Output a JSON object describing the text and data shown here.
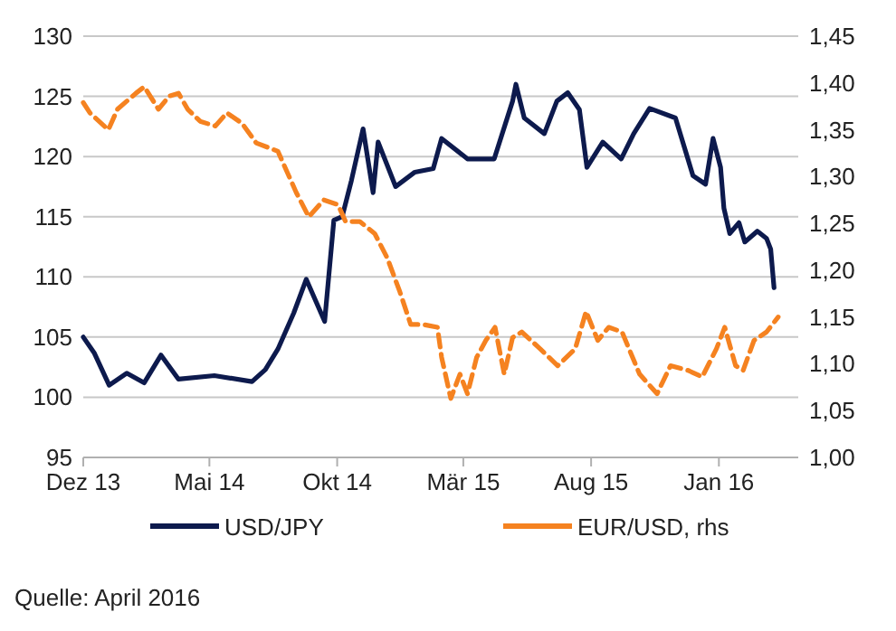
{
  "chart_data": {
    "type": "line",
    "grid": "y",
    "legend": "bottom",
    "xlim": [
      "2013-12-01",
      "2016-04-05"
    ],
    "xticks": [
      {
        "value": "2013-12-01",
        "label": "Dez 13"
      },
      {
        "value": "2014-05-01",
        "label": "Mai 14"
      },
      {
        "value": "2014-10-01",
        "label": "Okt 14"
      },
      {
        "value": "2015-03-01",
        "label": "Mär 15"
      },
      {
        "value": "2015-08-01",
        "label": "Aug 15"
      },
      {
        "value": "2016-01-01",
        "label": "Jan 16"
      }
    ],
    "ylim": [
      95,
      130
    ],
    "yticks": [
      95,
      100,
      105,
      110,
      115,
      120,
      125,
      130
    ],
    "y2lim": [
      1.0,
      1.45
    ],
    "y2ticks": [
      {
        "value": 1.0,
        "label": "1,00"
      },
      {
        "value": 1.05,
        "label": "1,05"
      },
      {
        "value": 1.1,
        "label": "1,10"
      },
      {
        "value": 1.15,
        "label": "1,15"
      },
      {
        "value": 1.2,
        "label": "1,20"
      },
      {
        "value": 1.25,
        "label": "1,25"
      },
      {
        "value": 1.3,
        "label": "1,30"
      },
      {
        "value": 1.35,
        "label": "1,35"
      },
      {
        "value": 1.4,
        "label": "1,40"
      },
      {
        "value": 1.45,
        "label": "1,45"
      }
    ],
    "annotations": [
      "Quelle: April 2016"
    ],
    "series": [
      {
        "name": "USD/JPY",
        "color": "#0d1a4d",
        "line_style": "solid",
        "x": [
          "2013-12-01",
          "2013-12-14",
          "2014-01-01",
          "2014-01-22",
          "2014-02-12",
          "2014-03-04",
          "2014-03-25",
          "2014-05-07",
          "2014-06-21",
          "2014-07-07",
          "2014-07-22",
          "2014-08-10",
          "2014-08-25",
          "2014-09-16",
          "2014-09-27",
          "2014-10-07",
          "2014-10-18",
          "2014-11-01",
          "2014-11-13",
          "2014-11-19",
          "2014-12-10",
          "2015-01-02",
          "2015-01-24",
          "2015-02-03",
          "2015-03-06",
          "2015-04-07",
          "2015-04-29",
          "2015-05-03",
          "2015-05-13",
          "2015-06-06",
          "2015-06-21",
          "2015-07-04",
          "2015-07-18",
          "2015-07-27",
          "2015-08-15",
          "2015-09-06",
          "2015-09-21",
          "2015-10-10",
          "2015-11-10",
          "2015-12-01",
          "2015-12-16",
          "2015-12-25",
          "2016-01-03",
          "2016-01-07",
          "2016-01-14",
          "2016-01-25",
          "2016-02-01",
          "2016-02-16",
          "2016-02-27",
          "2016-03-03",
          "2016-03-07"
        ],
        "values": [
          105,
          103.7,
          101,
          102,
          101.2,
          103.5,
          101.5,
          101.8,
          101.3,
          102.3,
          104,
          107,
          109.8,
          106.3,
          114.7,
          115,
          118,
          122.3,
          117,
          121.2,
          117.5,
          118.7,
          119,
          121.5,
          119.8,
          119.8,
          124.6,
          126,
          123.2,
          121.9,
          124.6,
          125.3,
          123.9,
          119.1,
          121.2,
          119.8,
          121.9,
          124,
          123.2,
          118.4,
          117.7,
          121.5,
          119.1,
          115.7,
          113.6,
          114.5,
          112.9,
          113.8,
          113.2,
          112.3,
          109.1
        ]
      },
      {
        "name": "EUR/USD, rhs",
        "color": "#f58220",
        "axis": "y2",
        "line_style": "dashed",
        "x": [
          "2013-12-01",
          "2013-12-09",
          "2013-12-31",
          "2014-01-11",
          "2014-02-02",
          "2014-02-12",
          "2014-03-01",
          "2014-03-14",
          "2014-03-25",
          "2014-04-05",
          "2014-04-20",
          "2014-05-08",
          "2014-05-22",
          "2014-06-09",
          "2014-06-26",
          "2014-07-22",
          "2014-08-13",
          "2014-08-28",
          "2014-09-15",
          "2014-10-02",
          "2014-10-11",
          "2014-10-28",
          "2014-11-15",
          "2014-11-30",
          "2014-12-15",
          "2014-12-28",
          "2015-01-12",
          "2015-01-29",
          "2015-02-03",
          "2015-02-14",
          "2015-02-25",
          "2015-03-06",
          "2015-03-17",
          "2015-03-28",
          "2015-04-08",
          "2015-04-19",
          "2015-04-29",
          "2015-05-10",
          "2015-06-01",
          "2015-06-22",
          "2015-07-13",
          "2015-07-26",
          "2015-08-09",
          "2015-08-22",
          "2015-09-07",
          "2015-09-28",
          "2015-10-19",
          "2015-11-04",
          "2015-11-25",
          "2015-12-12",
          "2015-12-29",
          "2016-01-08",
          "2016-01-21",
          "2016-01-30",
          "2016-02-12",
          "2016-02-27",
          "2016-03-12"
        ],
        "values": [
          1.379,
          1.368,
          1.35,
          1.372,
          1.389,
          1.396,
          1.372,
          1.386,
          1.389,
          1.372,
          1.359,
          1.354,
          1.368,
          1.357,
          1.336,
          1.327,
          1.283,
          1.257,
          1.275,
          1.27,
          1.252,
          1.252,
          1.239,
          1.213,
          1.177,
          1.142,
          1.142,
          1.139,
          1.107,
          1.063,
          1.089,
          1.068,
          1.107,
          1.125,
          1.139,
          1.089,
          1.128,
          1.134,
          1.116,
          1.098,
          1.116,
          1.156,
          1.125,
          1.139,
          1.134,
          1.089,
          1.068,
          1.098,
          1.093,
          1.086,
          1.116,
          1.139,
          1.098,
          1.093,
          1.125,
          1.134,
          1.15
        ]
      }
    ]
  }
}
